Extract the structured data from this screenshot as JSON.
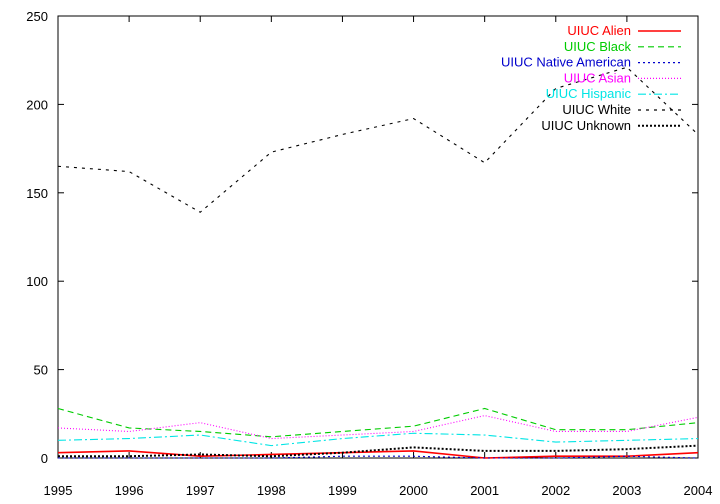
{
  "chart_data": {
    "type": "line",
    "title": "",
    "xlabel": "",
    "ylabel": "",
    "xlim": [
      1995,
      2004
    ],
    "ylim": [
      0,
      250
    ],
    "x": [
      1995,
      1996,
      1997,
      1998,
      1999,
      2000,
      2001,
      2002,
      2003,
      2004
    ],
    "x_ticks": [
      "1995",
      "1996",
      "1997",
      "1998",
      "1999",
      "2000",
      "2001",
      "2002",
      "2003",
      "2004"
    ],
    "y_ticks": [
      "0",
      "50",
      "100",
      "150",
      "200",
      "250"
    ],
    "grid": false,
    "legend_position": "top-right",
    "series": [
      {
        "name": "UIUC Alien",
        "color": "#ff0000",
        "dash": "solid",
        "values": [
          3,
          4,
          1,
          2,
          3,
          4,
          0,
          1,
          1,
          3
        ]
      },
      {
        "name": "UIUC Black",
        "color": "#00cc00",
        "dash": "dashed",
        "values": [
          28,
          17,
          15,
          12,
          15,
          18,
          28,
          16,
          16,
          20
        ]
      },
      {
        "name": "UIUC Native American",
        "color": "#0000cc",
        "dash": "dotted",
        "values": [
          0,
          0,
          0,
          0,
          1,
          1,
          0,
          0,
          1,
          0
        ]
      },
      {
        "name": "UIUC Asian",
        "color": "#ff00ff",
        "dash": "dotted-fine",
        "values": [
          17,
          15,
          20,
          11,
          13,
          15,
          24,
          15,
          15,
          23
        ]
      },
      {
        "name": "UIUC Hispanic",
        "color": "#00e5e5",
        "dash": "dashdot",
        "values": [
          10,
          11,
          13,
          7,
          11,
          14,
          13,
          9,
          10,
          11
        ]
      },
      {
        "name": "UIUC White",
        "color": "#000000",
        "dash": "sparse",
        "values": [
          165,
          162,
          139,
          173,
          183,
          192,
          167,
          209,
          221,
          183
        ]
      },
      {
        "name": "UIUC Unknown",
        "color": "#000000",
        "dash": "dense-dotted",
        "values": [
          1,
          1,
          2,
          1,
          3,
          6,
          4,
          4,
          5,
          7
        ]
      }
    ]
  }
}
